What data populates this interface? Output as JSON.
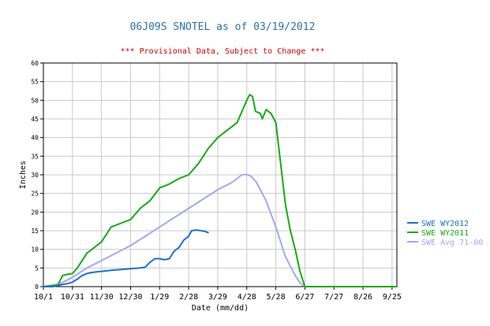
{
  "chart_data": {
    "type": "line",
    "title": "06J09S SNOTEL as of 03/19/2012",
    "subtitle": "*** Provisional Data, Subject to Change ***",
    "xlabel": "Date (mm/dd)",
    "ylabel": "Inches",
    "x_ticks": [
      "10/1",
      "10/31",
      "11/30",
      "12/30",
      "1/29",
      "2/28",
      "3/29",
      "4/28",
      "5/28",
      "6/27",
      "7/27",
      "8/26",
      "9/25"
    ],
    "ylim": [
      0,
      60
    ],
    "y_ticks": [
      0,
      5,
      10,
      15,
      20,
      25,
      30,
      35,
      40,
      45,
      50,
      55,
      60
    ],
    "grid": true,
    "legend_position": "right",
    "colors": {
      "title": "#2e6fa8",
      "subtitle": "#cc0000",
      "wy2012": "#1f6fc4",
      "wy2011": "#1aa81a",
      "avg": "#a6a6ee",
      "grid": "#c8c8c8",
      "axis": "#000000"
    },
    "series": [
      {
        "name": "SWE WY2012",
        "color_key": "wy2012",
        "points": [
          [
            "10/1",
            0
          ],
          [
            "10/11",
            0
          ],
          [
            "10/16",
            0.3
          ],
          [
            "10/21",
            0.6
          ],
          [
            "10/26",
            0.8
          ],
          [
            "10/31",
            1.2
          ],
          [
            "11/5",
            2
          ],
          [
            "11/10",
            3
          ],
          [
            "11/15",
            3.5
          ],
          [
            "11/20",
            3.8
          ],
          [
            "11/30",
            4.1
          ],
          [
            "12/10",
            4.4
          ],
          [
            "12/20",
            4.6
          ],
          [
            "12/30",
            4.8
          ],
          [
            "1/9",
            5
          ],
          [
            "1/14",
            5.2
          ],
          [
            "1/19",
            6.5
          ],
          [
            "1/24",
            7.5
          ],
          [
            "1/29",
            7.5
          ],
          [
            "2/3",
            7.2
          ],
          [
            "2/8",
            7.5
          ],
          [
            "2/13",
            9.5
          ],
          [
            "2/18",
            10.5
          ],
          [
            "2/23",
            12.5
          ],
          [
            "2/28",
            13.5
          ],
          [
            "3/2",
            15
          ],
          [
            "3/7",
            15.2
          ],
          [
            "3/12",
            15
          ],
          [
            "3/16",
            14.8
          ],
          [
            "3/19",
            14.5
          ]
        ]
      },
      {
        "name": "SWE WY2011",
        "color_key": "wy2011",
        "points": [
          [
            "10/1",
            0
          ],
          [
            "10/16",
            0.5
          ],
          [
            "10/21",
            3
          ],
          [
            "10/26",
            3.3
          ],
          [
            "10/31",
            3.5
          ],
          [
            "11/5",
            5
          ],
          [
            "11/10",
            7
          ],
          [
            "11/15",
            9
          ],
          [
            "11/20",
            10
          ],
          [
            "11/30",
            12
          ],
          [
            "12/10",
            16
          ],
          [
            "12/20",
            17
          ],
          [
            "12/30",
            18
          ],
          [
            "1/9",
            21
          ],
          [
            "1/19",
            23
          ],
          [
            "1/29",
            26.5
          ],
          [
            "2/8",
            27.5
          ],
          [
            "2/18",
            29
          ],
          [
            "2/28",
            30
          ],
          [
            "3/9",
            33
          ],
          [
            "3/19",
            37
          ],
          [
            "3/29",
            40
          ],
          [
            "4/8",
            42
          ],
          [
            "4/18",
            44
          ],
          [
            "4/23",
            47
          ],
          [
            "4/28",
            50
          ],
          [
            "5/1",
            51.5
          ],
          [
            "5/4",
            51
          ],
          [
            "5/7",
            47
          ],
          [
            "5/12",
            46.5
          ],
          [
            "5/14",
            45
          ],
          [
            "5/18",
            47.5
          ],
          [
            "5/23",
            46.5
          ],
          [
            "5/28",
            44
          ],
          [
            "6/2",
            33
          ],
          [
            "6/7",
            22
          ],
          [
            "6/12",
            15
          ],
          [
            "6/17",
            10
          ],
          [
            "6/22",
            4
          ],
          [
            "6/27",
            0
          ],
          [
            "7/27",
            0
          ],
          [
            "8/26",
            0
          ],
          [
            "9/25",
            0
          ],
          [
            "9/30",
            0
          ]
        ]
      },
      {
        "name": "SWE Avg 71-00",
        "color_key": "avg",
        "points": [
          [
            "10/1",
            0
          ],
          [
            "10/16",
            0.5
          ],
          [
            "10/31",
            2.5
          ],
          [
            "11/15",
            5
          ],
          [
            "11/30",
            7
          ],
          [
            "12/15",
            9
          ],
          [
            "12/30",
            11
          ],
          [
            "1/14",
            13.5
          ],
          [
            "1/29",
            16
          ],
          [
            "2/13",
            18.5
          ],
          [
            "2/28",
            21
          ],
          [
            "3/14",
            23.5
          ],
          [
            "3/29",
            26
          ],
          [
            "4/13",
            28
          ],
          [
            "4/23",
            30
          ],
          [
            "4/28",
            30.1
          ],
          [
            "5/3",
            29.5
          ],
          [
            "5/8",
            28
          ],
          [
            "5/18",
            23
          ],
          [
            "5/28",
            16
          ],
          [
            "6/7",
            8
          ],
          [
            "6/17",
            3
          ],
          [
            "6/22",
            1
          ],
          [
            "6/27",
            0
          ],
          [
            "7/27",
            0
          ],
          [
            "8/26",
            0
          ],
          [
            "9/25",
            0
          ],
          [
            "9/30",
            0
          ]
        ]
      }
    ]
  }
}
